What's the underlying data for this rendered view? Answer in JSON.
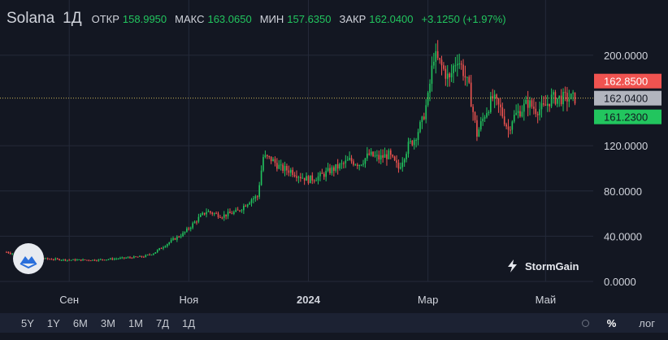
{
  "legend": {
    "symbol": "Solana",
    "timeframe": "1Д",
    "open_label": "ОТКР",
    "open": "158.9950",
    "high_label": "МАКС",
    "high": "163.0650",
    "low_label": "МИН",
    "low": "157.6350",
    "close_label": "ЗАКР",
    "close": "162.0400",
    "change": "+3.1250 (+1.97%)"
  },
  "price_tags": {
    "ask": "162.8500",
    "last": "162.0400",
    "bid": "161.2300"
  },
  "watermark": "StormGain",
  "toolbar": {
    "ranges": [
      "5Y",
      "1Y",
      "6M",
      "3M",
      "1M",
      "7Д",
      "1Д"
    ],
    "percent_label": "%",
    "log_label": "лог"
  },
  "colors": {
    "background": "#131722",
    "up": "#26a69a",
    "down": "#ef5350",
    "up_candle": "#22c55e",
    "ask_tag": "#f05350",
    "last_tag": "#b2b5be",
    "bid_tag": "#22c55e",
    "grid": "#242a3a"
  },
  "chart_data": {
    "type": "candlestick",
    "title": "",
    "xlabel": "",
    "ylabel": "",
    "ylim": [
      0,
      210
    ],
    "y_ticks": [
      "0.0000",
      "40.0000",
      "80.0000",
      "120.0000",
      "200.0000"
    ],
    "x_ticks": [
      "Сен",
      "Ноя",
      "2024",
      "Мар",
      "Май"
    ],
    "x_tick_days": [
      32,
      93,
      154,
      215,
      275
    ],
    "grid": true,
    "series": [
      {
        "days": [
          0,
          10,
          20,
          32,
          45,
          55,
          62,
          70,
          75,
          80,
          85,
          90,
          93,
          98,
          102,
          110,
          118,
          125,
          128,
          131,
          135,
          140,
          145,
          150,
          154,
          160,
          165,
          170,
          175,
          180,
          185,
          190,
          195,
          200,
          205,
          208,
          212,
          215,
          218,
          222,
          226,
          228,
          230,
          233,
          236,
          240,
          244,
          248,
          252,
          256,
          258,
          262,
          266,
          270,
          274,
          278,
          282,
          286,
          290
        ],
        "close": [
          26,
          22,
          20,
          19,
          19,
          20,
          21,
          22,
          25,
          31,
          37,
          42,
          47,
          56,
          62,
          58,
          62,
          73,
          75,
          110,
          108,
          100,
          98,
          93,
          90,
          93,
          98,
          102,
          107,
          104,
          112,
          109,
          112,
          100,
          120,
          126,
          141,
          162,
          200,
          190,
          178,
          190,
          198,
          186,
          170,
          130,
          148,
          162,
          152,
          134,
          144,
          151,
          158,
          152,
          153,
          162,
          162,
          162,
          162
        ]
      }
    ]
  }
}
